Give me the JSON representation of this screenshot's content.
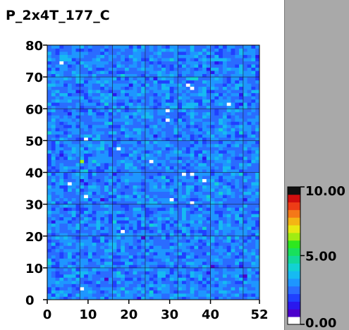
{
  "title": "P_2x4T_177_C",
  "chart_data": {
    "type": "heatmap",
    "title": "P_2x4T_177_C",
    "x_range": [
      0,
      52
    ],
    "y_range": [
      0,
      80
    ],
    "x_ticks": [
      0,
      10,
      20,
      30,
      40,
      52
    ],
    "y_ticks": [
      0,
      10,
      20,
      30,
      40,
      50,
      60,
      70,
      80
    ],
    "x_tick_labels": [
      "0",
      "10",
      "20",
      "30",
      "40",
      "52"
    ],
    "y_tick_labels": [
      "0",
      "10",
      "20",
      "30",
      "40",
      "50",
      "60",
      "70",
      "80"
    ],
    "grid_x": [
      0,
      8,
      16,
      24,
      32,
      40,
      48
    ],
    "grid_y": [
      0,
      10,
      20,
      30,
      40,
      50,
      60,
      70,
      80
    ],
    "cells_x": 52,
    "cells_y": 80,
    "z_range": [
      0,
      10
    ],
    "z_typical": 2.5,
    "colorbar_ticks": [
      0,
      5,
      10
    ],
    "colorbar_labels": [
      "0.00",
      "5.00",
      "10.00"
    ],
    "colormap": [
      "#ffffff",
      "#4b00cc",
      "#2a18ee",
      "#2040ff",
      "#2a6cff",
      "#1e96ff",
      "#16baf2",
      "#12d2d2",
      "#12d89a",
      "#18e05c",
      "#2ee81e",
      "#a0ec12",
      "#e8e812",
      "#f4b414",
      "#f47818",
      "#ee3c16",
      "#d00e0e",
      "#101010"
    ],
    "hot_cells": [
      {
        "x": 3,
        "y": 74,
        "value": 0
      },
      {
        "x": 34,
        "y": 67,
        "value": 0
      },
      {
        "x": 35,
        "y": 66,
        "value": 0
      },
      {
        "x": 44,
        "y": 61,
        "value": 0
      },
      {
        "x": 29,
        "y": 59,
        "value": 0
      },
      {
        "x": 29,
        "y": 56,
        "value": 0
      },
      {
        "x": 9,
        "y": 50,
        "value": 0
      },
      {
        "x": 17,
        "y": 47,
        "value": 0
      },
      {
        "x": 25,
        "y": 43,
        "value": 0
      },
      {
        "x": 8,
        "y": 43,
        "value": 6.5
      },
      {
        "x": 33,
        "y": 39,
        "value": 0
      },
      {
        "x": 35,
        "y": 39,
        "value": 0
      },
      {
        "x": 38,
        "y": 37,
        "value": 0
      },
      {
        "x": 5,
        "y": 36,
        "value": 0
      },
      {
        "x": 9,
        "y": 32,
        "value": 0
      },
      {
        "x": 30,
        "y": 31,
        "value": 0
      },
      {
        "x": 35,
        "y": 30,
        "value": 0
      },
      {
        "x": 18,
        "y": 21,
        "value": 0
      },
      {
        "x": 13,
        "y": 31,
        "value": 0.5
      },
      {
        "x": 23,
        "y": 19,
        "value": 0.5
      },
      {
        "x": 40,
        "y": 10,
        "value": 0.5
      },
      {
        "x": 14,
        "y": 6,
        "value": 0.5
      },
      {
        "x": 8,
        "y": 3,
        "value": 0
      },
      {
        "x": 48,
        "y": 7,
        "value": 0.5
      }
    ]
  }
}
